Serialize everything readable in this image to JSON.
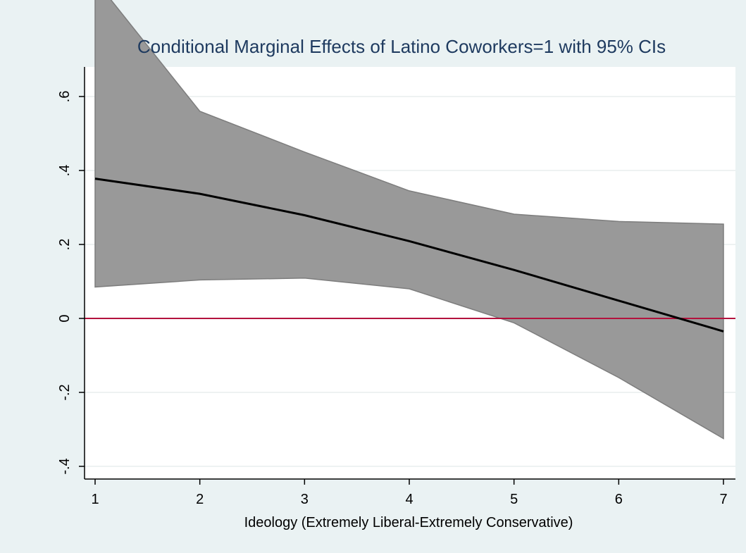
{
  "chart_data": {
    "type": "line",
    "title": "Conditional Marginal Effects of Latino Coworkers=1 with 95% CIs",
    "xlabel": "Ideology (Extremely Liberal-Extremely Conservative)",
    "ylabel": "",
    "x": [
      1,
      2,
      3,
      4,
      5,
      6,
      7
    ],
    "x_tick_labels": [
      "1",
      "2",
      "3",
      "4",
      "5",
      "6",
      "7"
    ],
    "y_ticks": [
      -0.4,
      -0.2,
      0,
      0.2,
      0.4,
      0.6
    ],
    "y_tick_labels": [
      "-.4",
      "-.2",
      "0",
      ".2",
      ".4",
      ".6"
    ],
    "xlim": [
      0.9,
      7.1
    ],
    "ylim": [
      -0.44,
      0.67
    ],
    "grid": true,
    "legend": "none",
    "series": [
      {
        "values": [
          0.378,
          0.337,
          0.279,
          0.209,
          0.131,
          0.048,
          -0.035
        ],
        "ci_upper": [
          0.915,
          0.56,
          0.45,
          0.345,
          0.282,
          0.262,
          0.255
        ],
        "ci_lower": [
          0.085,
          0.104,
          0.109,
          0.08,
          -0.012,
          -0.16,
          -0.325
        ]
      }
    ],
    "reference_line": {
      "y": 0
    },
    "colors": {
      "background": "#eaf2f3",
      "plot_area": "#ffffff",
      "ci_band": "#999999",
      "ci_edge": "#7d7d7d",
      "line": "#000000",
      "reference_line": "#b3123d",
      "title": "#1e3a5f",
      "grid": "#e8eeee"
    }
  }
}
